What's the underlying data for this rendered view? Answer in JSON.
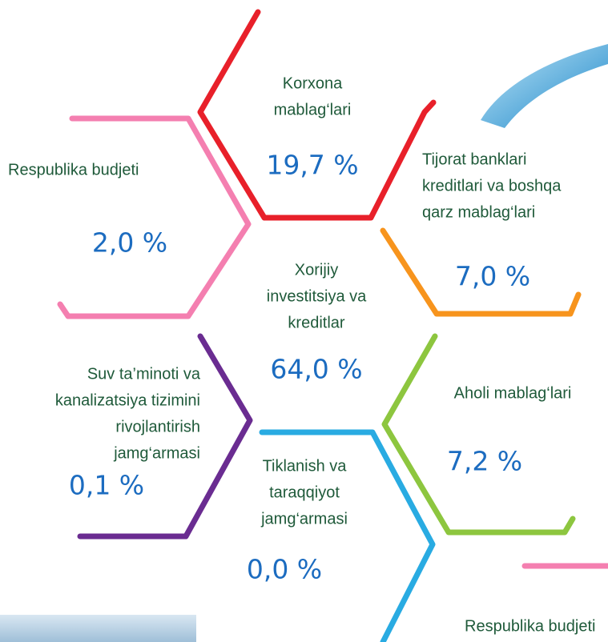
{
  "items": [
    {
      "label": [
        "Korxona",
        "mablag‘lari"
      ],
      "value": "19,7 %"
    },
    {
      "label": [
        "Respublika budjeti"
      ],
      "value": "2,0 %"
    },
    {
      "label": [
        "Tijorat banklari",
        "kreditlari va boshqa",
        "qarz mablag‘lari"
      ],
      "value": "7,0 %"
    },
    {
      "label": [
        "Xorijiy",
        "investitsiya va",
        "kreditlar"
      ],
      "value": "64,0 %"
    },
    {
      "label": [
        "Suv ta’minoti va",
        "kanalizatsiya tizimini",
        "rivojlantirish",
        "jamg‘armasi"
      ],
      "value": "0,1 %"
    },
    {
      "label": [
        "Aholi mablag‘lari"
      ],
      "value": "7,2 %"
    },
    {
      "label": [
        "Tiklanish va",
        "taraqqiyot",
        "jamg‘armasi"
      ],
      "value": "0,0 %"
    },
    {
      "label": [
        "Respublika budjeti"
      ]
    }
  ]
}
